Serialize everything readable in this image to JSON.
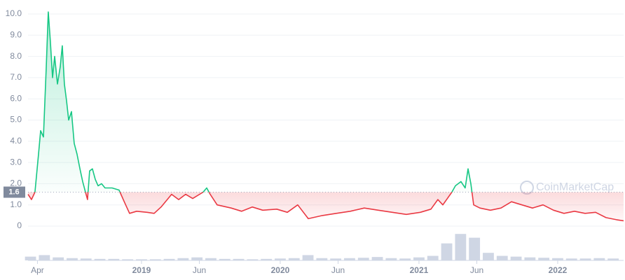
{
  "chart_data": {
    "type": "line",
    "watermark": "CoinMarketCap",
    "x": [
      2018.182,
      2018.207,
      2018.232,
      2018.258,
      2018.273,
      2018.293,
      2018.313,
      2018.328,
      2018.343,
      2018.359,
      2018.374,
      2018.394,
      2018.414,
      2018.429,
      2018.444,
      2018.46,
      2018.475,
      2018.495,
      2018.515,
      2018.535,
      2018.556,
      2018.576,
      2018.596,
      2018.611,
      2018.626,
      2018.646,
      2018.667,
      2018.687,
      2018.712,
      2018.737,
      2018.788,
      2018.838,
      2018.879,
      2018.914,
      2018.965,
      2019.04,
      2019.091,
      2019.141,
      2019.217,
      2019.268,
      2019.318,
      2019.369,
      2019.444,
      2019.47,
      2019.495,
      2019.545,
      2019.646,
      2019.722,
      2019.798,
      2019.874,
      2019.975,
      2020.051,
      2020.126,
      2020.202,
      2020.303,
      2020.404,
      2020.505,
      2020.606,
      2020.707,
      2020.808,
      2020.909,
      2021.01,
      2021.086,
      2021.136,
      2021.172,
      2021.237,
      2021.263,
      2021.303,
      2021.333,
      2021.354,
      2021.374,
      2021.394,
      2021.439,
      2021.515,
      2021.591,
      2021.667,
      2021.742,
      2021.818,
      2021.894,
      2021.97,
      2022.045,
      2022.121,
      2022.197,
      2022.273,
      2022.348,
      2022.424,
      2022.475
    ],
    "series": [
      {
        "values": [
          1.5,
          1.25,
          1.6,
          3.4,
          4.5,
          4.2,
          7.4,
          10.1,
          8.7,
          7.0,
          8.0,
          6.7,
          7.5,
          8.5,
          6.7,
          5.9,
          5.0,
          5.4,
          3.9,
          3.4,
          2.7,
          2.1,
          1.6,
          1.25,
          2.6,
          2.7,
          2.2,
          1.9,
          2.0,
          1.8,
          1.8,
          1.7,
          1.1,
          0.6,
          0.7,
          0.65,
          0.6,
          0.9,
          1.5,
          1.25,
          1.5,
          1.3,
          1.6,
          1.8,
          1.5,
          1.0,
          0.85,
          0.7,
          0.9,
          0.75,
          0.8,
          0.65,
          1.0,
          0.35,
          0.5,
          0.6,
          0.7,
          0.85,
          0.75,
          0.65,
          0.55,
          0.65,
          0.8,
          1.25,
          1.0,
          1.6,
          1.9,
          2.1,
          1.8,
          2.7,
          2.0,
          1.0,
          0.85,
          0.75,
          0.85,
          1.15,
          1.0,
          0.85,
          1.0,
          0.75,
          0.6,
          0.7,
          0.6,
          0.65,
          0.4,
          0.3,
          0.25
        ]
      }
    ],
    "up_color": "#16c784",
    "down_color": "#ea3943",
    "reference": 1.6,
    "volume": {
      "color": "#cfd6e4",
      "ylim": [
        0,
        100
      ],
      "x": [
        2018.2,
        2018.3,
        2018.4,
        2018.5,
        2018.6,
        2018.7,
        2018.8,
        2018.9,
        2019.0,
        2019.1,
        2019.2,
        2019.3,
        2019.4,
        2019.5,
        2019.6,
        2019.7,
        2019.8,
        2019.9,
        2020.0,
        2020.1,
        2020.2,
        2020.3,
        2020.4,
        2020.5,
        2020.6,
        2020.7,
        2020.8,
        2020.9,
        2021.0,
        2021.1,
        2021.2,
        2021.3,
        2021.4,
        2021.5,
        2021.6,
        2021.7,
        2021.8,
        2021.9,
        2022.0,
        2022.1,
        2022.2,
        2022.3,
        2022.4
      ],
      "values": [
        10,
        14,
        8,
        6,
        5,
        4,
        4,
        3,
        3,
        3,
        4,
        6,
        8,
        6,
        4,
        4,
        3,
        4,
        5,
        6,
        14,
        6,
        5,
        6,
        7,
        9,
        6,
        5,
        8,
        12,
        45,
        70,
        60,
        20,
        12,
        10,
        8,
        7,
        6,
        5,
        5,
        6,
        5
      ]
    },
    "xlim": [
      2018.182,
      2022.475
    ],
    "xticks": [
      {
        "value": 2018.25,
        "label": "Apr"
      },
      2019,
      {
        "value": 2019.417,
        "label": "Jun"
      },
      2020,
      {
        "value": 2020.417,
        "label": "Jun"
      },
      2021,
      {
        "value": 2021.417,
        "label": "Jun"
      },
      2022
    ],
    "ylim": [
      0,
      10
    ],
    "yticks": [
      0,
      {
        "value": 1,
        "label": "1.0"
      },
      {
        "value": 2,
        "label": "2.0"
      },
      {
        "value": 3,
        "label": "3.0"
      },
      {
        "value": 4,
        "label": "4.0"
      },
      {
        "value": 5,
        "label": "5.0"
      },
      {
        "value": 6,
        "label": "6.0"
      },
      {
        "value": 7,
        "label": "7.0"
      },
      {
        "value": 8,
        "label": "8.0"
      },
      {
        "value": 9,
        "label": "9.0"
      },
      {
        "value": 10,
        "label": "10.0"
      }
    ],
    "grid": true
  }
}
